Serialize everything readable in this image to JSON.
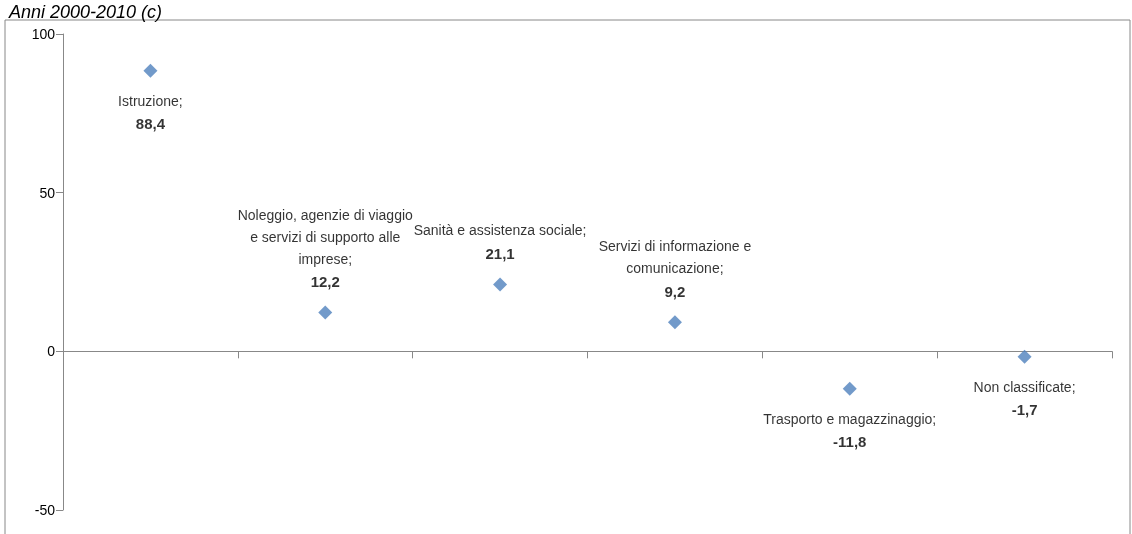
{
  "chart_data": {
    "type": "scatter",
    "subtitle": "Anni 2000-2010 (c)",
    "categories": [
      null,
      null,
      null,
      null,
      null,
      null
    ],
    "values": [
      88.4,
      12.2,
      21.1,
      9.2,
      -11.8,
      -1.7
    ],
    "value_labels": [
      "Istruzione;\n88,4",
      "Noleggio, agenzie di viaggio e servizi di supporto alle imprese;\n12,2",
      "Sanità e assistenza sociale;\n21,1",
      "Servizi di informazione e comunicazione;\n9,2",
      "Trasporto e magazzinaggio;\n-11,8",
      "Non classificate;\n-1,7"
    ],
    "color": "#4f81bd",
    "marker": "diamond",
    "ylim": [
      -50,
      100
    ],
    "yticks": [
      -50,
      0,
      50,
      100
    ]
  }
}
